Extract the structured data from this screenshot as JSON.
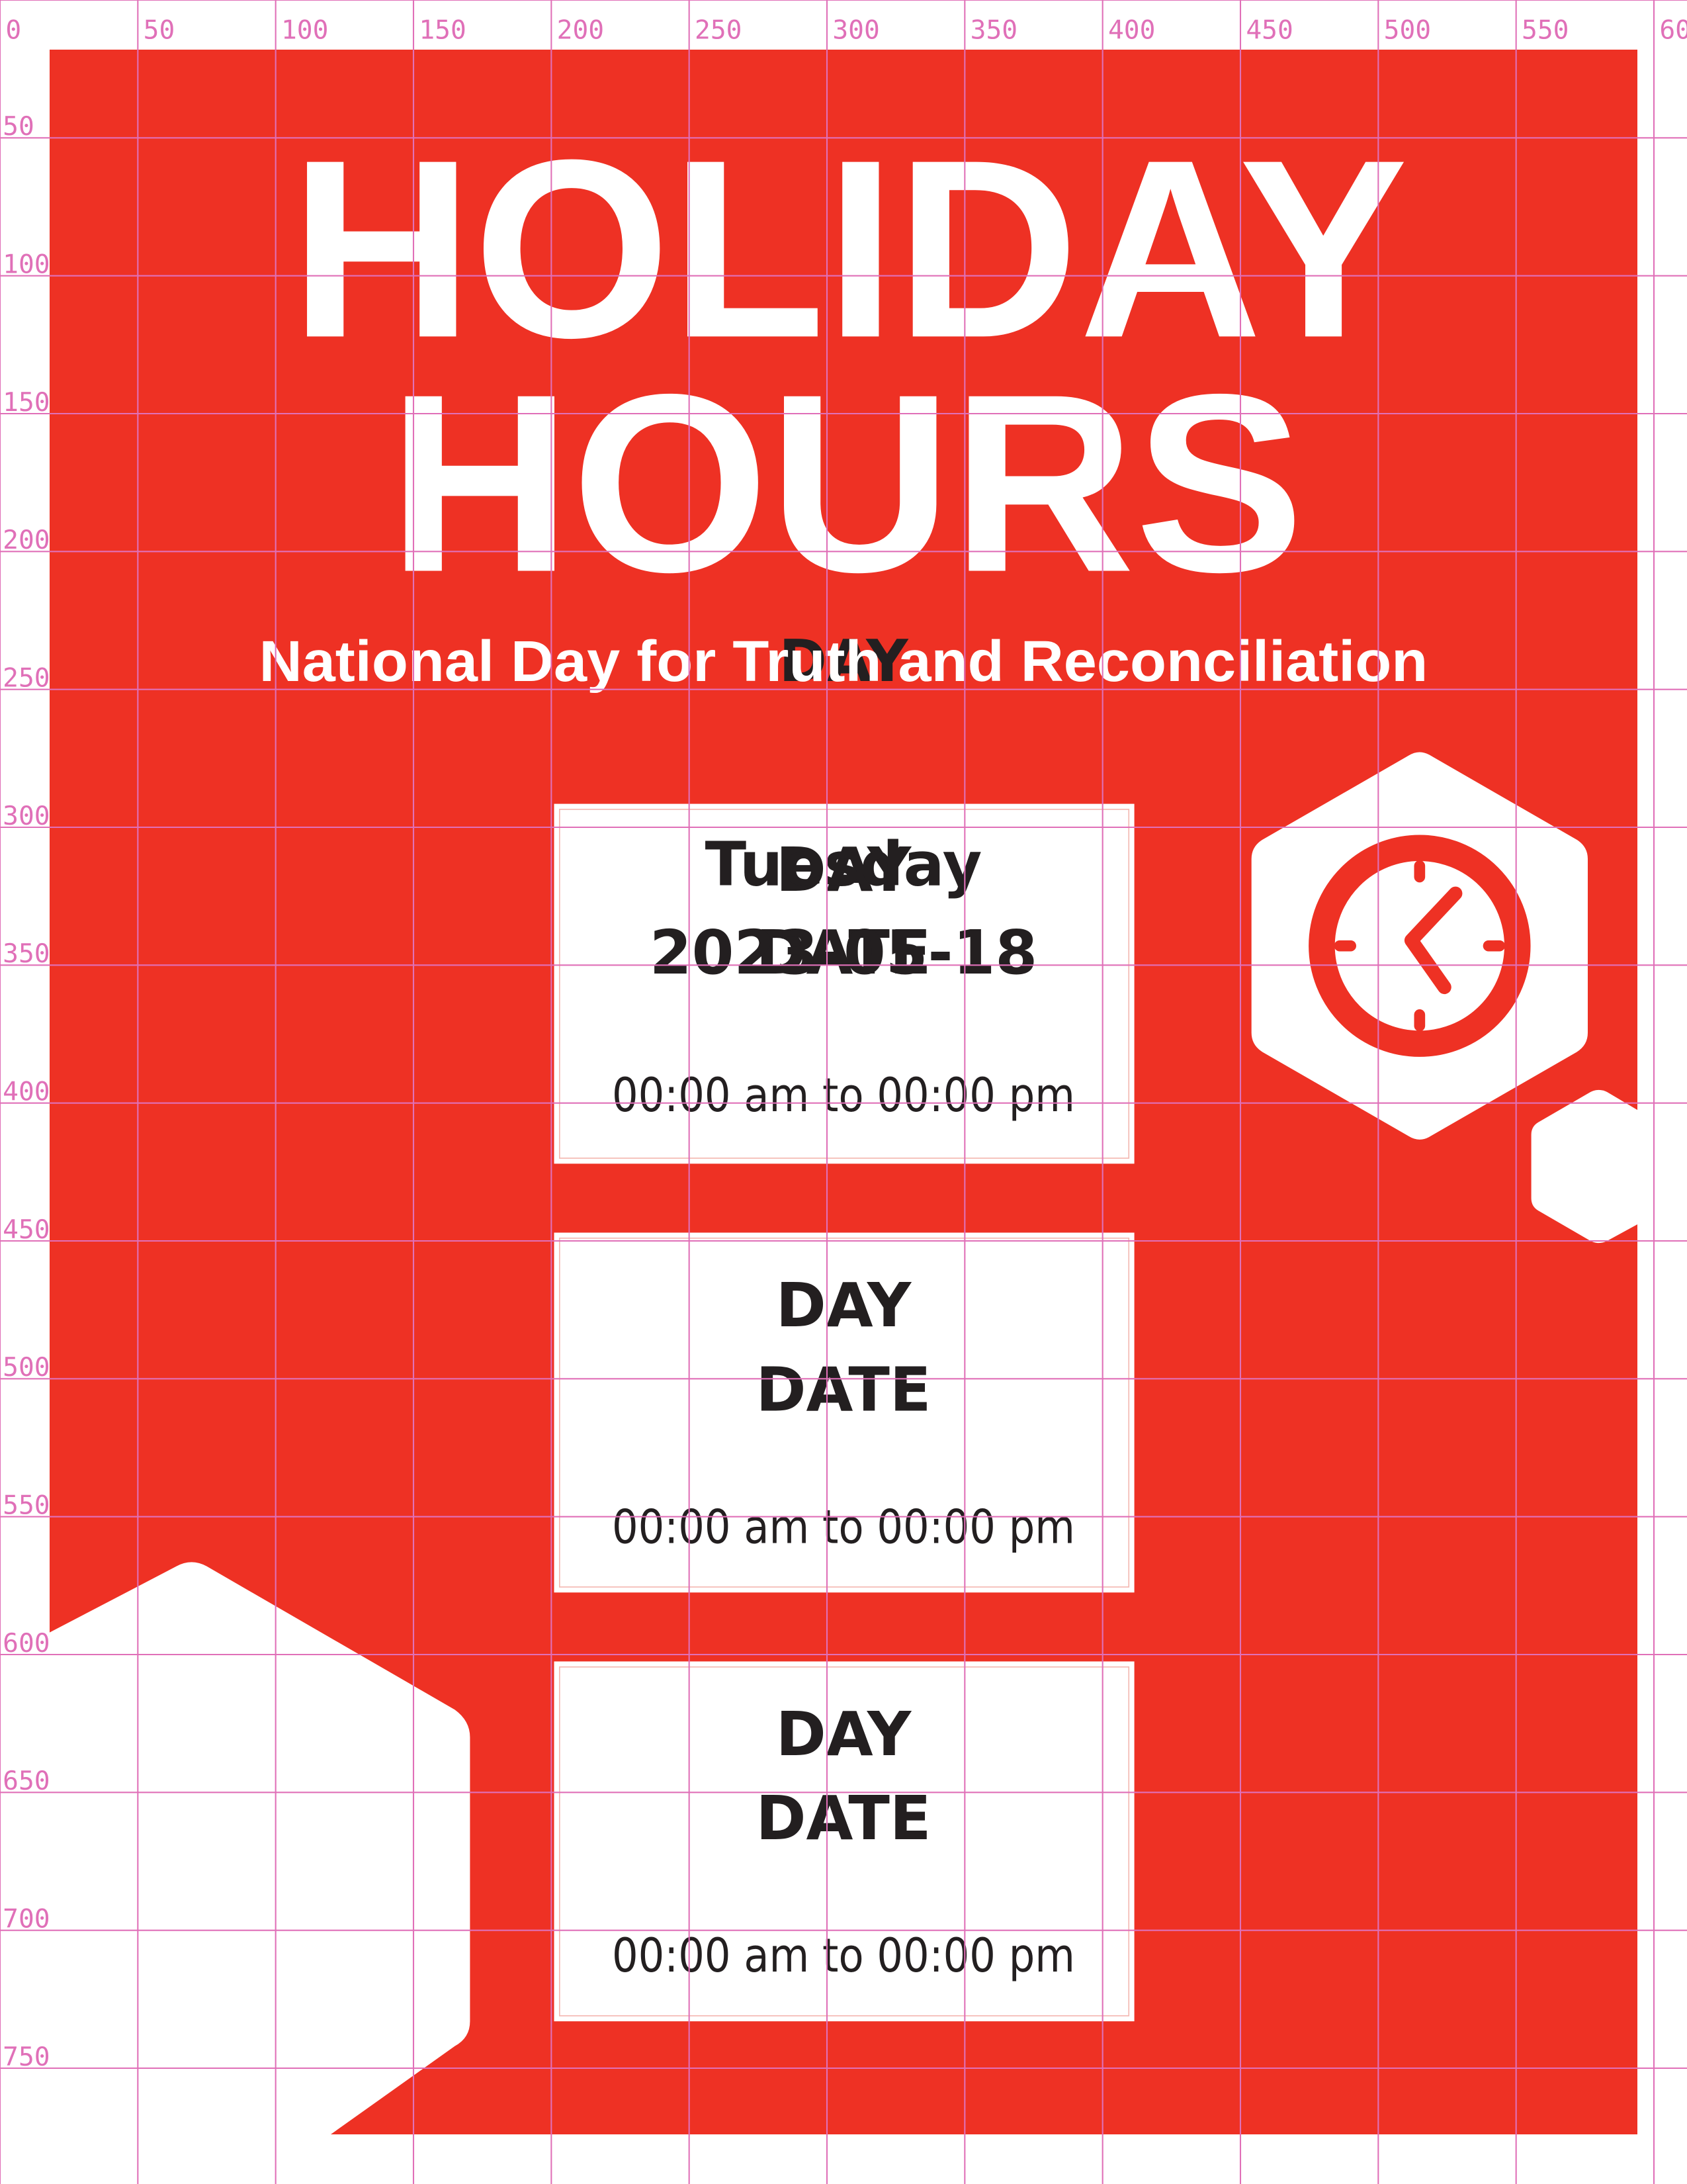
{
  "colors": {
    "background_red": "#ee3124",
    "white": "#ffffff",
    "text_dark": "#231f20",
    "guide_pink": "#e070b8"
  },
  "header": {
    "title_line1": "HOLIDAY",
    "title_line2": "HOURS",
    "subtitle": "National Day for Truth and Reconciliation",
    "overlap_placeholder": "DAY"
  },
  "clock_icon": "clock-icon",
  "cards": [
    {
      "day": "Tuesday",
      "date": "2023-05-18",
      "day_placeholder": "DAY",
      "date_placeholder": "DATE",
      "hours": "00:00 am to 00:00 pm"
    },
    {
      "day": "DAY",
      "date": "DATE",
      "hours": "00:00 am to 00:00 pm"
    },
    {
      "day": "DAY",
      "date": "DATE",
      "hours": "00:00 am to 00:00 pm"
    }
  ],
  "ruler": {
    "x_labels": [
      "0",
      "50",
      "100",
      "150",
      "200",
      "250",
      "300",
      "350",
      "400",
      "450",
      "500",
      "550",
      "60"
    ],
    "y_labels": [
      "50",
      "100",
      "150",
      "200",
      "250",
      "300",
      "350",
      "400",
      "450",
      "500",
      "550",
      "600",
      "650",
      "700",
      "750"
    ]
  }
}
